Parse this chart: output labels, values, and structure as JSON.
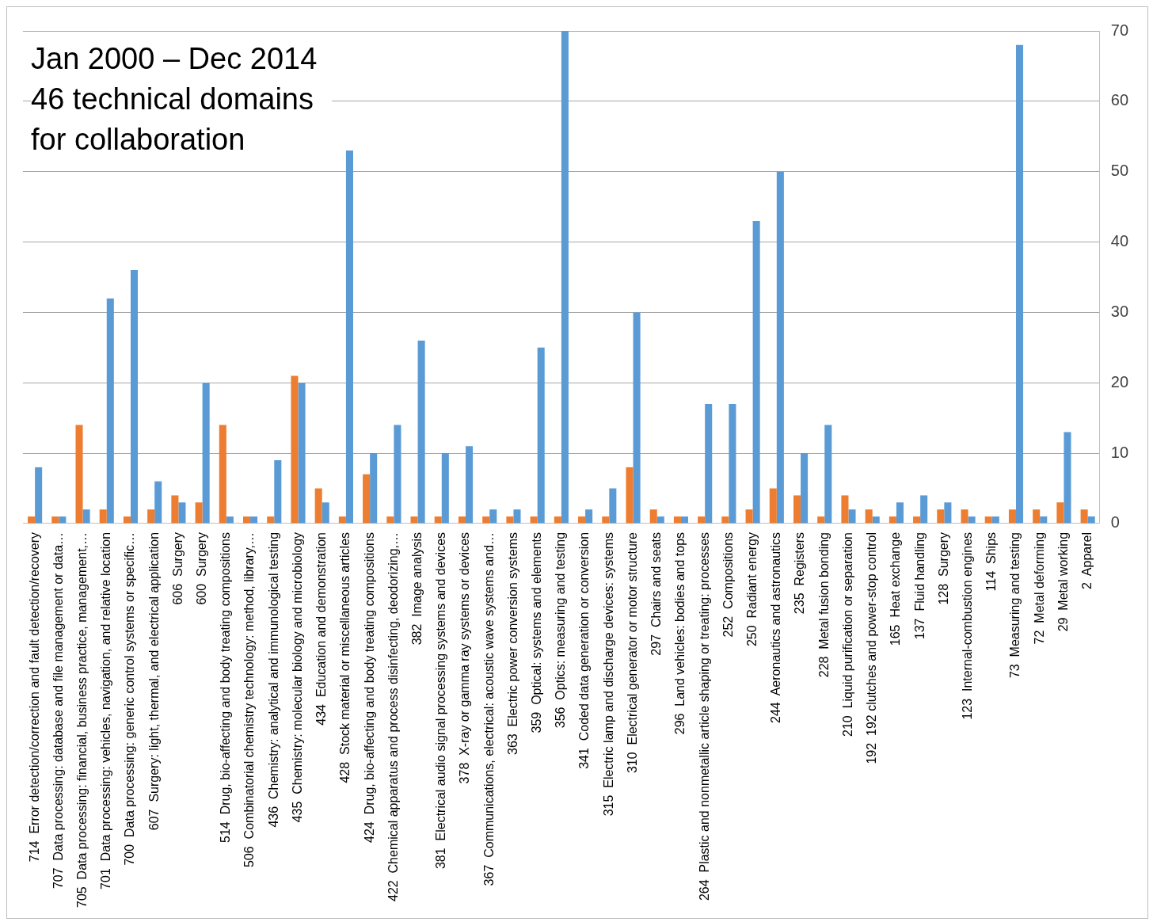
{
  "chart_data": {
    "type": "bar",
    "title": "Jan 2000 – Dec 2014",
    "subtitle": "46 technical domains for collaboration",
    "categories": [
      "714  Error detection/correction and fault detection/recovery",
      "707  Data processing: database and file management or data…",
      "705  Data processing: financial, business practice, management,…",
      "701  Data processing: vehicles, navigation, and relative location",
      "700  Data processing: generic control systems or specific…",
      "607  Surgery: light, thermal, and electrical application",
      "606  Surgery",
      "600  Surgery",
      "514  Drug, bio-affecting and body treating compositions",
      "506  Combinatorial chemistry technology: method, library,…",
      "436  Chemistry: analytical and immunological testing",
      "435  Chemistry: molecular biology and microbiology",
      "434  Education and demonstration",
      "428  Stock material or miscellaneous articles",
      "424  Drug, bio-affecting and body treating compositions",
      "422  Chemical apparatus and process disinfecting, deodorizing,…",
      "382  Image analysis",
      "381  Electrical audio signal processing systems and devices",
      "378  X-ray or gamma ray systems or devices",
      "367  Communications, electrical: acoustic wave systems and…",
      "363  Electric power conversion systems",
      "359  Optical: systems and elements",
      "356  Optics: measuring and testing",
      "341  Coded data generation or conversion",
      "315  Electric lamp and discharge devices: systems",
      "310  Electrical generator or motor structure",
      "297  Chairs and seats",
      "296  Land vehicles: bodies and tops",
      "264  Plastic and nonmetallic article shaping or treating: processes",
      "252  Compositions",
      "250  Radiant energy",
      "244  Aeronautics and astronautics",
      "235  Registers",
      "228  Metal fusion bonding",
      "210  Liquid purification or separation",
      "192  192 clutches and power-stop control",
      "165  Heat exchange",
      "137  Fluid handling",
      "128  Surgery",
      "123  Internal-combustion engines",
      "114  Ships",
      "73  Measuring and testing",
      "72  Metal deforming",
      "29  Metal working",
      "2  Apparel"
    ],
    "series": [
      {
        "color": "#ed7d31",
        "values": [
          1,
          1,
          14,
          2,
          1,
          2,
          4,
          3,
          14,
          1,
          1,
          21,
          5,
          1,
          7,
          1,
          1,
          1,
          1,
          1,
          1,
          1,
          1,
          1,
          1,
          8,
          2,
          1,
          1,
          1,
          2,
          5,
          4,
          1,
          4,
          2,
          1,
          1,
          2,
          2,
          1,
          2,
          2,
          3,
          2
        ]
      },
      {
        "color": "#5b9bd5",
        "values": [
          8,
          1,
          2,
          32,
          36,
          6,
          3,
          20,
          1,
          1,
          9,
          20,
          3,
          53,
          10,
          14,
          26,
          10,
          11,
          2,
          2,
          25,
          70,
          2,
          5,
          30,
          1,
          1,
          17,
          17,
          43,
          50,
          10,
          14,
          2,
          1,
          3,
          4,
          3,
          1,
          1,
          68,
          1,
          13,
          1
        ]
      }
    ],
    "ylim": [
      0,
      70
    ],
    "yticks": [
      0,
      10,
      20,
      30,
      40,
      50,
      60,
      70
    ],
    "grid": "y",
    "legend": false
  }
}
